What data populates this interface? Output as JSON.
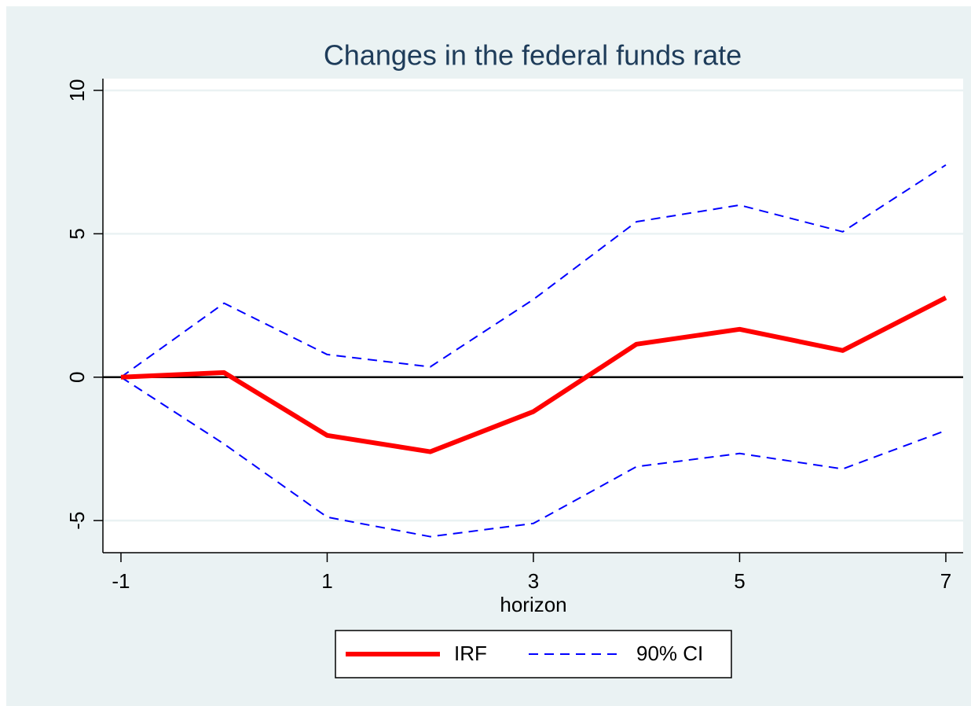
{
  "chart_data": {
    "type": "line",
    "title": "Changes in the federal funds rate",
    "x_label": "horizon",
    "x": [
      -1,
      0,
      1,
      2,
      3,
      4,
      5,
      6,
      7
    ],
    "series": [
      {
        "name": "IRF",
        "color": "#ff0000",
        "values": [
          0,
          0.16,
          -2.03,
          -2.6,
          -1.2,
          1.15,
          1.67,
          0.93,
          2.77
        ]
      },
      {
        "name": "90% CI",
        "color": "#0000ff",
        "upper": [
          0,
          2.58,
          0.79,
          0.36,
          2.71,
          5.42,
          6.0,
          5.07,
          7.4
        ],
        "lower": [
          0,
          -2.33,
          -4.88,
          -5.56,
          -5.1,
          -3.12,
          -2.66,
          -3.2,
          -1.86
        ]
      }
    ],
    "xlim": [
      -1.175,
      7.168
    ],
    "ylim": [
      -6.12,
      10.41
    ],
    "xticks": [
      -1,
      1,
      3,
      5,
      7
    ],
    "yticks": [
      -5,
      0,
      5,
      10
    ],
    "yline": 0,
    "grid": true,
    "legend": "bottom"
  }
}
